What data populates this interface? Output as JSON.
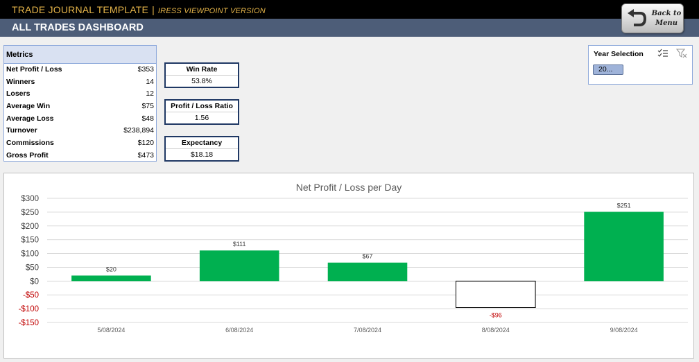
{
  "header": {
    "title": "TRADE JOURNAL TEMPLATE",
    "separator": "|",
    "subtitle": "IRESS VIEWPOINT VERSION",
    "dashboard_title": "ALL TRADES DASHBOARD",
    "back_button": {
      "line1": "Back to",
      "line2": "Menu",
      "icon": "u-turn-arrow-icon"
    }
  },
  "metrics": {
    "header": "Metrics",
    "rows": [
      {
        "label": "Net Profit / Loss",
        "value": "$353"
      },
      {
        "label": "Winners",
        "value": "14"
      },
      {
        "label": "Losers",
        "value": "12"
      },
      {
        "label": "Average Win",
        "value": "$75"
      },
      {
        "label": "Average Loss",
        "value": "$48"
      },
      {
        "label": "Turnover",
        "value": "$238,894"
      },
      {
        "label": "Commissions",
        "value": "$120"
      },
      {
        "label": "Gross Profit",
        "value": "$473"
      }
    ]
  },
  "kpis": [
    {
      "title": "Win Rate",
      "value": "53.8%"
    },
    {
      "title": "Profit / Loss Ratio",
      "value": "1.56"
    },
    {
      "title": "Expectancy",
      "value": "$18.18"
    }
  ],
  "slicer": {
    "title": "Year Selection",
    "items": [
      "20..."
    ],
    "icons": [
      "multi-select-icon",
      "clear-filter-icon"
    ]
  },
  "colors": {
    "title_bar": "#000000",
    "title_text": "#e7b64a",
    "subtitle_bar": "#4d5d78",
    "positive_bar": "#00b050",
    "negative_label": "#c00000",
    "kpi_border": "#1f3864"
  },
  "chart_data": {
    "type": "bar",
    "title": "Net Profit / Loss per Day",
    "categories": [
      "5/08/2024",
      "6/08/2024",
      "7/08/2024",
      "8/08/2024",
      "9/08/2024"
    ],
    "values": [
      20,
      111,
      67,
      -96,
      251
    ],
    "data_labels": [
      "$20",
      "$111",
      "$67",
      "-$96",
      "$251"
    ],
    "y_ticks": [
      300,
      250,
      200,
      150,
      100,
      50,
      0,
      -50,
      -100,
      -150
    ],
    "y_tick_labels": [
      "$300",
      "$250",
      "$200",
      "$150",
      "$100",
      "$50",
      "$0",
      "-$50",
      "-$100",
      "-$150"
    ],
    "ylim": [
      -150,
      300
    ],
    "grid": true,
    "xlabel": "",
    "ylabel": ""
  }
}
